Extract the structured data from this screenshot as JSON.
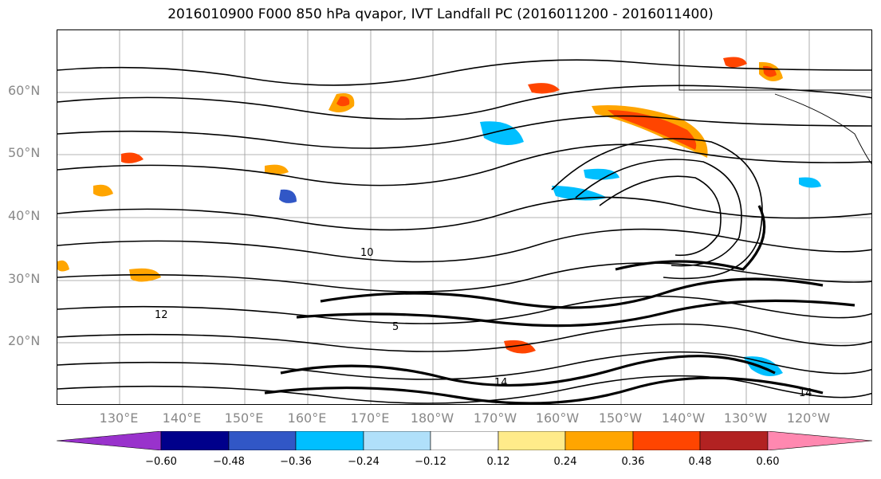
{
  "title": "2016010900 F000 850 hPa qvapor, IVT Landfall PC (2016011200 - 2016011400)",
  "lat_labels": [
    "60°N",
    "50°N",
    "40°N",
    "30°N",
    "20°N"
  ],
  "lon_labels": [
    "130°E",
    "140°E",
    "150°E",
    "160°E",
    "170°E",
    "180°W",
    "170°W",
    "160°W",
    "150°W",
    "140°W",
    "130°W",
    "120°W"
  ],
  "colorbar": {
    "colors": [
      "#9932cc",
      "#00008b",
      "#3157c6",
      "#00bfff",
      "#b0e0fa",
      "#ffffff",
      "#ffeb8a",
      "#ffa500",
      "#ff4500",
      "#b22222",
      "#ff88b0"
    ],
    "ticks": [
      "−0.60",
      "−0.48",
      "−0.36",
      "−0.24",
      "−0.12",
      "0.12",
      "0.24",
      "0.36",
      "0.48",
      "0.60"
    ]
  },
  "contour_labels": [
    "12",
    "14",
    "5",
    "10",
    "14"
  ]
}
